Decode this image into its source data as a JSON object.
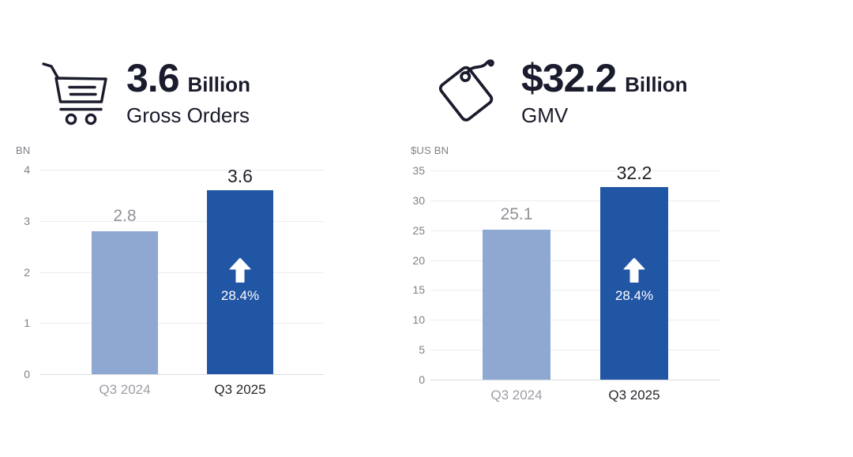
{
  "colors": {
    "dark_navy": "#1a1b2c",
    "bar_prior": "#8fa8d2",
    "bar_current": "#2156a5",
    "gray_label": "#9b9ea4",
    "tick_text": "#7d8186",
    "gridline": "#ebedef",
    "annotation_text": "#ffffff"
  },
  "panels": [
    {
      "icon": "shopping-cart-icon",
      "headline_value": "3.6",
      "headline_unit": "Billion",
      "headline_label": "Gross Orders"
    },
    {
      "icon": "price-tag-icon",
      "headline_value": "$32.2",
      "headline_unit": "Billion",
      "headline_label": "GMV"
    }
  ],
  "chart_data": [
    {
      "type": "bar",
      "title": "Gross Orders",
      "xlabel": "",
      "ylabel": "BN",
      "categories": [
        "Q3 2024",
        "Q3 2025"
      ],
      "values": [
        2.8,
        3.6
      ],
      "value_labels": [
        "2.8",
        "3.6"
      ],
      "ylim": [
        0,
        4
      ],
      "yticks": [
        0,
        1,
        2,
        3,
        4
      ],
      "grid": true,
      "legend": "none",
      "bar_colors": [
        "#8fa8d2",
        "#2156a5"
      ],
      "annotation": {
        "bar_index": 1,
        "icon": "up-arrow-icon",
        "text": "28.4%"
      }
    },
    {
      "type": "bar",
      "title": "GMV",
      "xlabel": "",
      "ylabel": "$US BN",
      "categories": [
        "Q3 2024",
        "Q3 2025"
      ],
      "values": [
        25.1,
        32.2
      ],
      "value_labels": [
        "25.1",
        "32.2"
      ],
      "ylim": [
        0,
        35
      ],
      "yticks": [
        0,
        5,
        10,
        15,
        20,
        25,
        30,
        35
      ],
      "grid": true,
      "legend": "none",
      "bar_colors": [
        "#8fa8d2",
        "#2156a5"
      ],
      "annotation": {
        "bar_index": 1,
        "icon": "up-arrow-icon",
        "text": "28.4%"
      }
    }
  ]
}
